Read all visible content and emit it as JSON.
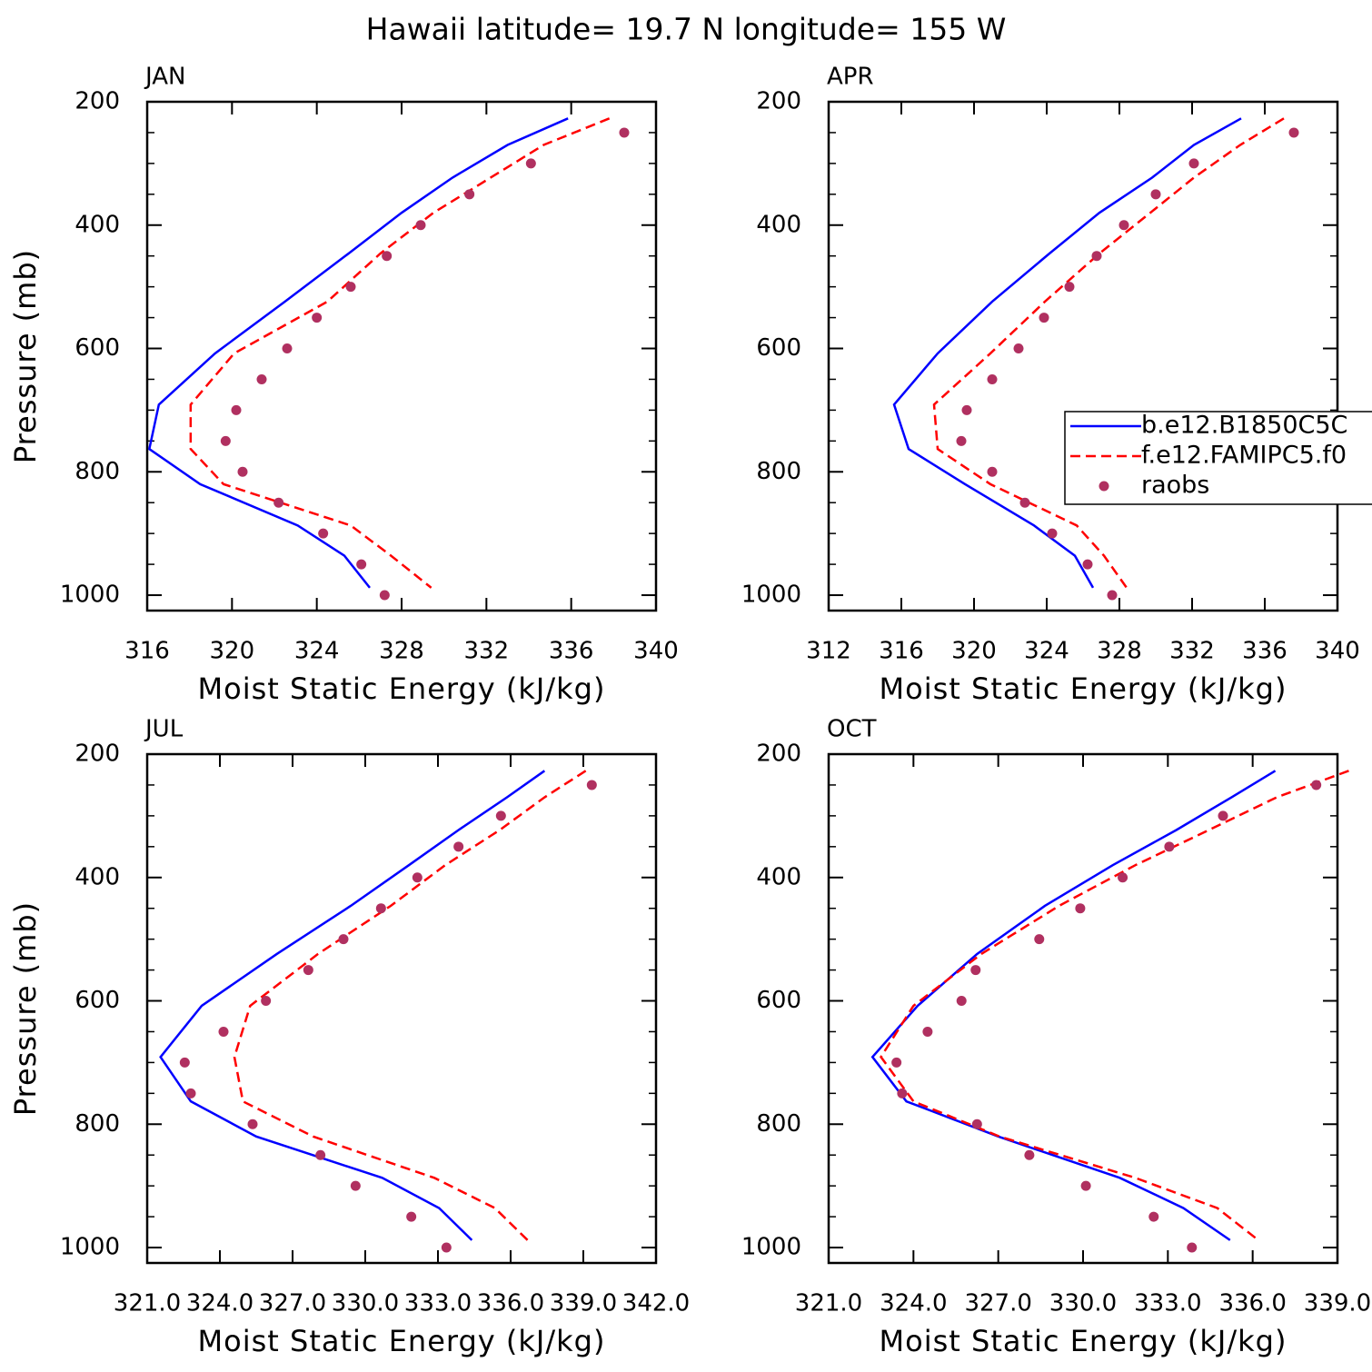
{
  "title": "Hawaii  latitude= 19.7 N longitude= 155 W",
  "chart_data": [
    {
      "type": "line",
      "title": "JAN",
      "xlabel": "Moist Static Energy (kJ/kg)",
      "ylabel": "Pressure (mb)",
      "xlim": [
        316,
        340
      ],
      "xticks": [
        316,
        320,
        324,
        328,
        332,
        336,
        340
      ],
      "ylim": [
        200,
        1025
      ],
      "y_inverted": true,
      "yticks": [
        200,
        400,
        600,
        800,
        1000
      ],
      "yminor": [
        250,
        300,
        350,
        450,
        500,
        550,
        650,
        700,
        750,
        850,
        900,
        950
      ],
      "series": [
        {
          "color": "#0000ff",
          "style": "solid",
          "values": [
            335.85,
            333.0,
            330.4,
            328.0,
            325.5,
            322.5,
            319.2,
            316.55,
            316.1,
            318.5,
            323.1,
            325.3,
            326.5
          ],
          "pressure": [
            227,
            270,
            323,
            380,
            446,
            524,
            608,
            691,
            763,
            820,
            887,
            936,
            988
          ]
        },
        {
          "color": "#ff0000",
          "style": "dashed",
          "values": [
            337.8,
            334.7,
            332.2,
            329.5,
            327.0,
            324.5,
            320.1,
            318.05,
            318.05,
            319.6,
            325.6,
            327.5,
            329.4
          ],
          "pressure": [
            227,
            270,
            323,
            380,
            446,
            524,
            608,
            691,
            763,
            820,
            887,
            936,
            988
          ]
        },
        {
          "color": "#b03060",
          "style": "markers",
          "values": [
            338.5,
            334.1,
            331.2,
            328.9,
            327.3,
            325.6,
            324.0,
            322.6,
            321.4,
            320.2,
            319.7,
            320.5,
            322.2,
            324.3,
            326.1,
            327.2
          ],
          "pressure": [
            250,
            300,
            350,
            400,
            450,
            500,
            550,
            600,
            650,
            700,
            750,
            800,
            850,
            900,
            950,
            1000
          ]
        }
      ]
    },
    {
      "type": "line",
      "title": "APR",
      "xlabel": "Moist Static Energy (kJ/kg)",
      "xlim": [
        312,
        340
      ],
      "xticks": [
        312,
        316,
        320,
        324,
        328,
        332,
        336,
        340
      ],
      "ylim": [
        200,
        1025
      ],
      "y_inverted": true,
      "yticks": [
        200,
        400,
        600,
        800,
        1000
      ],
      "yminor": [
        250,
        300,
        350,
        450,
        500,
        550,
        650,
        700,
        750,
        850,
        900,
        950
      ],
      "legend": "right",
      "series": [
        {
          "name": "b.e12.B1850C5C",
          "color": "#0000ff",
          "style": "solid",
          "values": [
            334.7,
            332.1,
            329.8,
            326.9,
            324.15,
            321.0,
            318.0,
            315.6,
            316.4,
            319.5,
            323.3,
            325.55,
            326.55
          ],
          "pressure": [
            227,
            270,
            323,
            380,
            446,
            524,
            608,
            691,
            763,
            820,
            887,
            936,
            988
          ]
        },
        {
          "name": "f.e12.FAMIPC5.f0",
          "color": "#ff0000",
          "style": "dashed",
          "values": [
            337.05,
            334.65,
            332.1,
            329.7,
            326.9,
            323.9,
            320.9,
            317.8,
            318.0,
            320.9,
            325.65,
            327.15,
            328.4
          ],
          "pressure": [
            227,
            270,
            323,
            380,
            446,
            524,
            608,
            691,
            763,
            820,
            887,
            936,
            988
          ]
        },
        {
          "name": "raobs",
          "color": "#b03060",
          "style": "markers",
          "values": [
            337.6,
            332.1,
            330.0,
            328.25,
            326.75,
            325.25,
            323.85,
            322.45,
            321.0,
            319.6,
            319.3,
            321.0,
            322.8,
            324.3,
            326.25,
            327.6
          ],
          "pressure": [
            250,
            300,
            350,
            400,
            450,
            500,
            550,
            600,
            650,
            700,
            750,
            800,
            850,
            900,
            950,
            1000
          ]
        }
      ]
    },
    {
      "type": "line",
      "title": "JUL",
      "xlabel": "Moist Static Energy (kJ/kg)",
      "ylabel": "Pressure (mb)",
      "xlim": [
        321,
        342
      ],
      "xticks": [
        {
          "value": 321,
          "label": "321.0"
        },
        {
          "value": 324,
          "label": "324.0"
        },
        {
          "value": 327,
          "label": "327.0"
        },
        {
          "value": 330,
          "label": "330.0"
        },
        {
          "value": 333,
          "label": "333.0"
        },
        {
          "value": 336,
          "label": "336.0"
        },
        {
          "value": 339,
          "label": "339.0"
        },
        {
          "value": 342,
          "label": "342.0"
        }
      ],
      "ylim": [
        200,
        1025
      ],
      "y_inverted": true,
      "yticks": [
        200,
        400,
        600,
        800,
        1000
      ],
      "yminor": [
        250,
        300,
        350,
        450,
        500,
        550,
        650,
        700,
        750,
        850,
        900,
        950
      ],
      "series": [
        {
          "color": "#0000ff",
          "style": "solid",
          "values": [
            337.4,
            335.85,
            333.85,
            331.8,
            329.4,
            326.35,
            323.25,
            321.55,
            322.8,
            325.5,
            330.7,
            333.05,
            334.4
          ],
          "pressure": [
            227,
            270,
            323,
            380,
            446,
            524,
            608,
            691,
            763,
            820,
            887,
            936,
            988
          ]
        },
        {
          "color": "#ff0000",
          "style": "dashed",
          "values": [
            339.1,
            337.4,
            335.55,
            333.3,
            331.05,
            328.05,
            325.25,
            324.6,
            324.95,
            327.85,
            332.85,
            335.35,
            336.7
          ],
          "pressure": [
            227,
            270,
            323,
            380,
            446,
            524,
            608,
            691,
            763,
            820,
            887,
            936,
            988
          ]
        },
        {
          "color": "#b03060",
          "style": "markers",
          "values": [
            339.35,
            335.6,
            333.85,
            332.15,
            330.65,
            329.1,
            327.65,
            325.9,
            324.15,
            322.55,
            322.8,
            325.35,
            328.15,
            329.6,
            331.9,
            333.35
          ],
          "pressure": [
            250,
            300,
            350,
            400,
            450,
            500,
            550,
            600,
            650,
            700,
            750,
            800,
            850,
            900,
            950,
            1000
          ]
        }
      ]
    },
    {
      "type": "line",
      "title": "OCT",
      "xlabel": "Moist Static Energy (kJ/kg)",
      "xlim": [
        321,
        339
      ],
      "xticks": [
        {
          "value": 321,
          "label": "321.0"
        },
        {
          "value": 324,
          "label": "324.0"
        },
        {
          "value": 327,
          "label": "327.0"
        },
        {
          "value": 330,
          "label": "330.0"
        },
        {
          "value": 333,
          "label": "333.0"
        },
        {
          "value": 336,
          "label": "336.0"
        },
        {
          "value": 339,
          "label": "339.0"
        }
      ],
      "ylim": [
        200,
        1025
      ],
      "y_inverted": true,
      "yticks": [
        200,
        400,
        600,
        800,
        1000
      ],
      "yminor": [
        250,
        300,
        350,
        450,
        500,
        550,
        650,
        700,
        750,
        850,
        900,
        950
      ],
      "series": [
        {
          "color": "#0000ff",
          "style": "solid",
          "values": [
            336.8,
            335.25,
            333.3,
            331.05,
            328.65,
            326.25,
            324.15,
            322.55,
            323.75,
            327.0,
            331.3,
            333.55,
            335.2
          ],
          "pressure": [
            227,
            270,
            323,
            380,
            446,
            524,
            608,
            691,
            763,
            820,
            887,
            936,
            988
          ]
        },
        {
          "color": "#ff0000",
          "style": "dashed",
          "values": [
            339.4,
            336.85,
            334.45,
            331.85,
            329.15,
            326.4,
            324.0,
            322.85,
            324.0,
            327.05,
            331.85,
            334.75,
            336.2
          ],
          "pressure": [
            227,
            270,
            323,
            380,
            446,
            524,
            608,
            691,
            763,
            820,
            887,
            936,
            988
          ]
        },
        {
          "color": "#b03060",
          "style": "markers",
          "values": [
            338.25,
            334.95,
            333.05,
            331.4,
            329.9,
            328.45,
            326.2,
            325.7,
            324.5,
            323.4,
            323.6,
            326.25,
            328.1,
            330.1,
            332.5,
            333.85
          ],
          "pressure": [
            250,
            300,
            350,
            400,
            450,
            500,
            550,
            600,
            650,
            700,
            750,
            800,
            850,
            900,
            950,
            1000
          ]
        }
      ]
    }
  ]
}
